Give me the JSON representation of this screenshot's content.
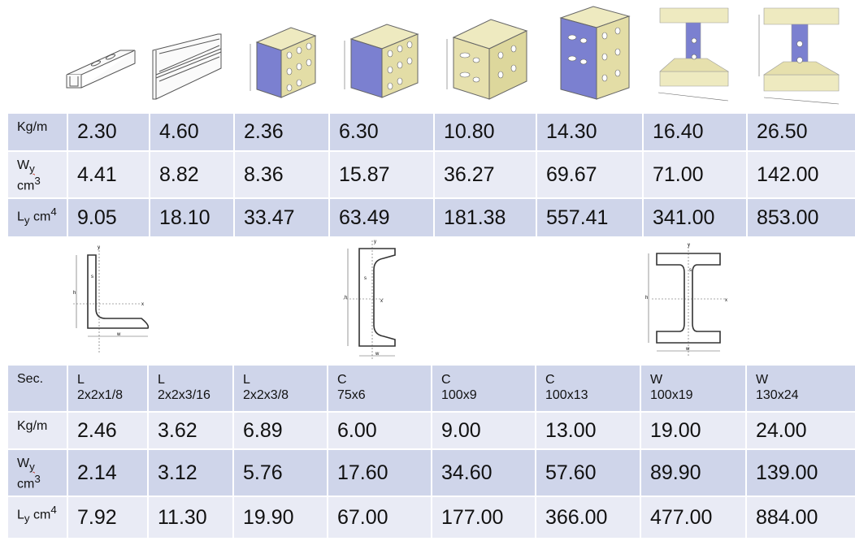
{
  "colors": {
    "header_row": "#cfd5ea",
    "alt_row": "#e9ebf5",
    "profile_fill": "#e8e3b1",
    "profile_inner": "#7b80d0"
  },
  "top_profiles": [
    "strut-channel-single-icon",
    "strut-channel-double-icon",
    "slotted-box-2-36-icon",
    "slotted-box-6-30-icon",
    "slotted-box-10-80-icon",
    "slotted-box-14-30-icon",
    "i-beam-16-40-icon",
    "i-beam-26-50-icon"
  ],
  "top_table": {
    "rows": [
      {
        "label": "Kg/m",
        "values": [
          "2.30",
          "4.60",
          "2.36",
          "6.30",
          "10.80",
          "14.30",
          "16.40",
          "26.50"
        ]
      },
      {
        "label_main": "W",
        "label_sub": "y",
        "label_unit": "cm",
        "label_exp": "3",
        "values": [
          "4.41",
          "8.82",
          "8.36",
          "15.87",
          "36.27",
          "69.67",
          "71.00",
          "142.00"
        ]
      },
      {
        "label_main": "L",
        "label_sub": "y",
        "label_unit": " cm",
        "label_exp": "4",
        "values": [
          "9.05",
          "18.10",
          "33.47",
          "63.49",
          "181.38",
          "557.41",
          "341.00",
          "853.00"
        ]
      }
    ]
  },
  "diagrams": {
    "angle": {
      "axis_x": "x",
      "axis_y": "y",
      "dim_w": "w",
      "dim_s": "s",
      "dim_h": "h"
    },
    "channel": {
      "axis_x": "x",
      "axis_y": "y",
      "dim_w": "w",
      "dim_s": "s",
      "dim_h": "h"
    },
    "wide_flange": {
      "axis_x": "x",
      "axis_y": "y",
      "dim_w": "w",
      "dim_s": "s",
      "dim_h": "h"
    }
  },
  "bottom_table": {
    "header": {
      "label": "Sec.",
      "sections": [
        {
          "type": "L",
          "size": "2x2x1/8"
        },
        {
          "type": "L",
          "size": "2x2x3/16"
        },
        {
          "type": "L",
          "size": "2x2x3/8"
        },
        {
          "type": "C",
          "size": "75x6"
        },
        {
          "type": "C",
          "size": "100x9"
        },
        {
          "type": "C",
          "size": "100x13"
        },
        {
          "type": "W",
          "size": "100x19"
        },
        {
          "type": "W",
          "size": "130x24"
        }
      ]
    },
    "rows": [
      {
        "label": "Kg/m",
        "values": [
          "2.46",
          "3.62",
          "6.89",
          "6.00",
          "9.00",
          "13.00",
          "19.00",
          "24.00"
        ]
      },
      {
        "label_main": "W",
        "label_sub": "y",
        "label_unit": "cm",
        "label_exp": "3",
        "values": [
          "2.14",
          "3.12",
          "5.76",
          "17.60",
          "34.60",
          "57.60",
          "89.90",
          "139.00"
        ]
      },
      {
        "label_main": "L",
        "label_sub": "y",
        "label_unit": " cm",
        "label_exp": "4",
        "values": [
          "7.92",
          "11.30",
          "19.90",
          "67.00",
          "177.00",
          "366.00",
          "477.00",
          "884.00"
        ]
      }
    ]
  }
}
